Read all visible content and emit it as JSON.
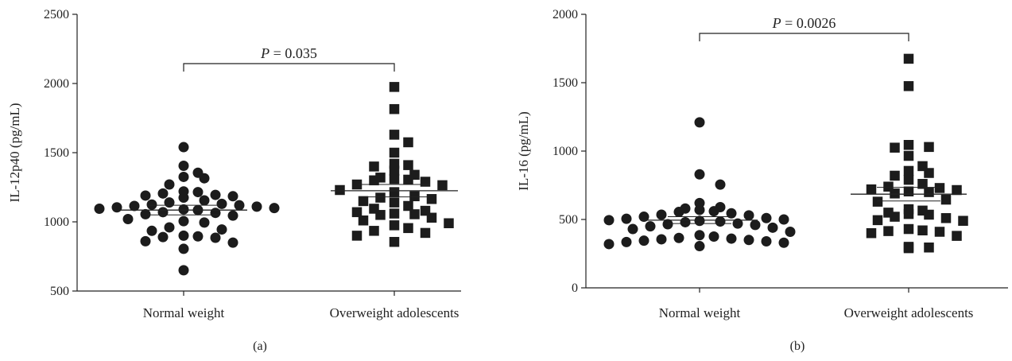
{
  "chart_data": [
    {
      "type": "scatter",
      "panel_label": "(a)",
      "ylabel": "IL-12p40 (pg/mL)",
      "ylim": [
        500,
        2500
      ],
      "yticks": [
        500,
        1000,
        1500,
        2000,
        2500
      ],
      "categories": [
        "Normal weight",
        "Overweight adolescents"
      ],
      "annotation": {
        "p_symbol": "P",
        "p_rest": " = 0.035"
      },
      "series": [
        {
          "marker": "circle",
          "mean": 1085,
          "sem_range": [
            1050,
            1120
          ],
          "values": [
            1540,
            1405,
            1355,
            1325,
            1315,
            1270,
            1220,
            1215,
            1205,
            1195,
            1190,
            1185,
            1175,
            1155,
            1140,
            1130,
            1125,
            1120,
            1115,
            1110,
            1105,
            1100,
            1095,
            1090,
            1085,
            1070,
            1065,
            1055,
            1045,
            1020,
            1005,
            995,
            960,
            945,
            935,
            900,
            895,
            890,
            885,
            860,
            850,
            805,
            650
          ]
        },
        {
          "marker": "square",
          "mean": 1225,
          "sem_range": [
            1180,
            1270
          ],
          "values": [
            1975,
            1815,
            1630,
            1575,
            1500,
            1420,
            1410,
            1400,
            1370,
            1340,
            1320,
            1310,
            1305,
            1300,
            1290,
            1270,
            1265,
            1230,
            1215,
            1185,
            1175,
            1165,
            1150,
            1140,
            1115,
            1095,
            1080,
            1070,
            1060,
            1055,
            1050,
            1030,
            1010,
            990,
            975,
            955,
            935,
            920,
            900,
            855
          ]
        }
      ]
    },
    {
      "type": "scatter",
      "panel_label": "(b)",
      "ylabel": "IL-16 (pg/mL)",
      "ylim": [
        0,
        2000
      ],
      "yticks": [
        0,
        500,
        1000,
        1500,
        2000
      ],
      "categories": [
        "Normal weight",
        "Overweight adolescents"
      ],
      "annotation": {
        "p_symbol": "P",
        "p_rest": " = 0.0026"
      },
      "series": [
        {
          "marker": "circle",
          "mean": 495,
          "sem_range": [
            470,
            520
          ],
          "values": [
            1210,
            830,
            755,
            620,
            590,
            580,
            570,
            560,
            555,
            545,
            535,
            530,
            520,
            510,
            505,
            500,
            495,
            490,
            485,
            480,
            470,
            465,
            460,
            450,
            440,
            430,
            410,
            385,
            375,
            365,
            360,
            355,
            350,
            345,
            340,
            335,
            330,
            320,
            305
          ]
        },
        {
          "marker": "square",
          "mean": 685,
          "sem_range": [
            635,
            735
          ],
          "values": [
            1675,
            1475,
            1045,
            1030,
            1025,
            965,
            890,
            855,
            840,
            820,
            790,
            760,
            740,
            730,
            720,
            715,
            705,
            700,
            690,
            645,
            630,
            575,
            565,
            550,
            540,
            535,
            520,
            510,
            495,
            490,
            430,
            420,
            415,
            410,
            400,
            380,
            300,
            295,
            290
          ]
        }
      ]
    }
  ]
}
